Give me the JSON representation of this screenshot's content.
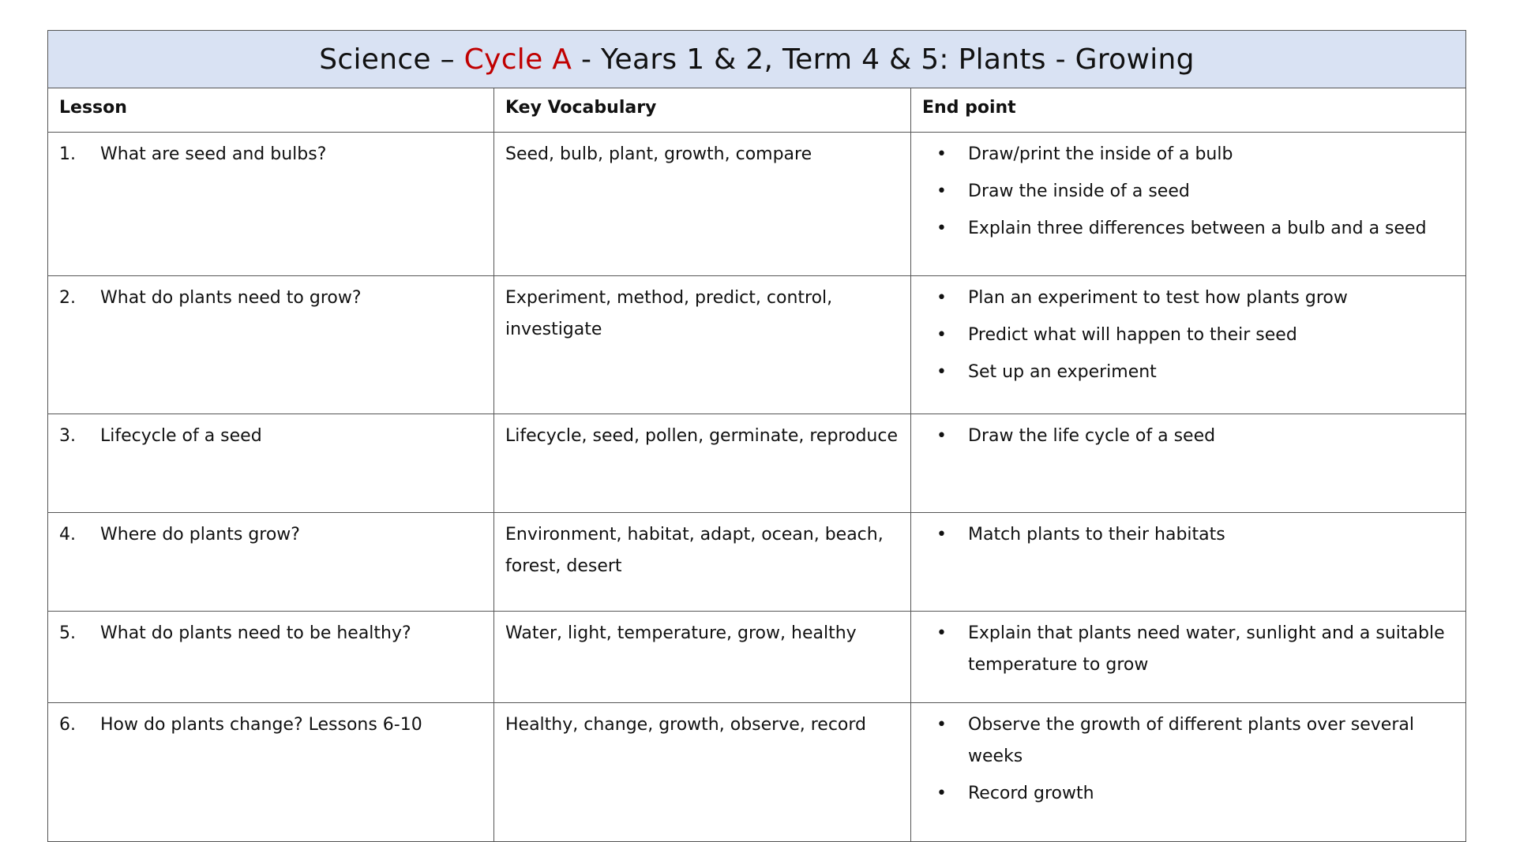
{
  "title": {
    "prefix": "Science – ",
    "highlight": "Cycle A",
    "suffix": " - Years 1 & 2, Term 4 & 5: Plants - Growing",
    "highlight_color": "#c00000"
  },
  "headers": [
    "Lesson",
    "Key Vocabulary",
    "End point"
  ],
  "rows": [
    {
      "num": "1.",
      "lesson": "What are seed and bulbs?",
      "vocab": "Seed, bulb, plant, growth, compare",
      "endpoints": [
        "Draw/print the inside of a bulb",
        "Draw the inside of a seed",
        "Explain three differences between a bulb and a seed"
      ]
    },
    {
      "num": "2.",
      "lesson": "What do plants need to grow?",
      "vocab": "Experiment, method, predict, control, investigate",
      "endpoints": [
        "Plan an experiment to test how plants grow",
        "Predict what will happen to their seed",
        "Set up an experiment"
      ]
    },
    {
      "num": "3.",
      "lesson": "Lifecycle of a seed",
      "vocab": "Lifecycle, seed, pollen, germinate, reproduce",
      "endpoints": [
        "Draw the life cycle of a seed"
      ]
    },
    {
      "num": "4.",
      "lesson": "Where do plants grow?",
      "vocab": "Environment, habitat, adapt, ocean, beach, forest, desert",
      "endpoints": [
        "Match plants to their habitats"
      ]
    },
    {
      "num": "5.",
      "lesson": "What do plants need to be healthy?",
      "vocab": "Water, light, temperature, grow, healthy",
      "endpoints": [
        "Explain that plants need water, sunlight and a suitable temperature to grow"
      ]
    },
    {
      "num": "6.",
      "lesson": "How do plants change? Lessons 6-10",
      "vocab": "Healthy, change, growth, observe, record",
      "endpoints": [
        "Observe the growth of different plants over several weeks",
        "Record growth"
      ]
    }
  ]
}
